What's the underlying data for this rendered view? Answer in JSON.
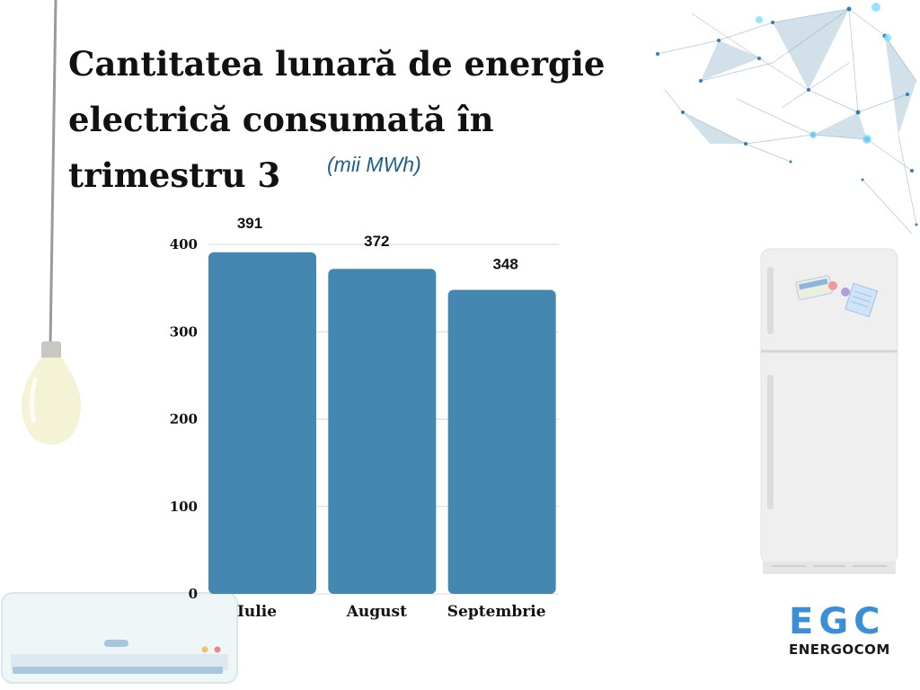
{
  "title": "Cantitatea lunară de energie electrică consumată în trimestru 3",
  "unit_note": "(mii MWh)",
  "chart_data": {
    "type": "bar",
    "categories": [
      "Iulie",
      "August",
      "Septembrie"
    ],
    "values": [
      391,
      372,
      348
    ],
    "ylim": [
      0,
      400
    ],
    "yticks": [
      0,
      100,
      200,
      300,
      400
    ],
    "grid": true,
    "bar_color": "#4488b1"
  },
  "logo": {
    "name": "EGC",
    "subtitle": "ENERGOCOM",
    "color": "#3a8fd8"
  }
}
